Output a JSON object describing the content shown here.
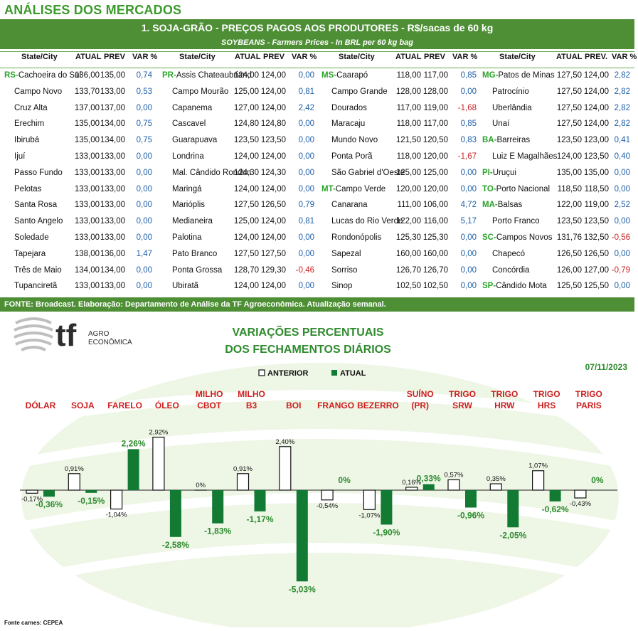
{
  "header": {
    "title": "ANÁLISES DOS MERCADOS"
  },
  "table": {
    "title": "1. SOJA-GRÃO - PREÇOS PAGOS AOS PRODUTORES - R$/sacas de 60 kg",
    "subtitle": "SOYBEANS - Farmers Prices - In BRL per 60 kg bag",
    "groups": [
      {
        "headers": [
          "State/City",
          "ATUAL",
          "PREV",
          "VAR %"
        ],
        "rows": [
          {
            "state": "RS",
            "city": "Cachoeira do Sul",
            "atual": "136,00",
            "prev": "135,00",
            "var": "0,74"
          },
          {
            "state": "",
            "city": "Campo Novo",
            "atual": "133,70",
            "prev": "133,00",
            "var": "0,53"
          },
          {
            "state": "",
            "city": "Cruz Alta",
            "atual": "137,00",
            "prev": "137,00",
            "var": "0,00"
          },
          {
            "state": "",
            "city": "Erechim",
            "atual": "135,00",
            "prev": "134,00",
            "var": "0,75"
          },
          {
            "state": "",
            "city": "Ibirubá",
            "atual": "135,00",
            "prev": "134,00",
            "var": "0,75"
          },
          {
            "state": "",
            "city": "Ijuí",
            "atual": "133,00",
            "prev": "133,00",
            "var": "0,00"
          },
          {
            "state": "",
            "city": "Passo Fundo",
            "atual": "133,00",
            "prev": "133,00",
            "var": "0,00"
          },
          {
            "state": "",
            "city": "Pelotas",
            "atual": "133,00",
            "prev": "133,00",
            "var": "0,00"
          },
          {
            "state": "",
            "city": "Santa Rosa",
            "atual": "133,00",
            "prev": "133,00",
            "var": "0,00"
          },
          {
            "state": "",
            "city": "Santo Angelo",
            "atual": "133,00",
            "prev": "133,00",
            "var": "0,00"
          },
          {
            "state": "",
            "city": "Soledade",
            "atual": "133,00",
            "prev": "133,00",
            "var": "0,00"
          },
          {
            "state": "",
            "city": "Tapejara",
            "atual": "138,00",
            "prev": "136,00",
            "var": "1,47"
          },
          {
            "state": "",
            "city": "Três de Maio",
            "atual": "134,00",
            "prev": "134,00",
            "var": "0,00"
          },
          {
            "state": "",
            "city": "Tupanciretã",
            "atual": "133,00",
            "prev": "133,00",
            "var": "0,00"
          }
        ]
      },
      {
        "headers": [
          "State/City",
          "ATUAL",
          "PREV",
          "VAR %"
        ],
        "rows": [
          {
            "state": "PR",
            "city": "Assis Chateaubriand",
            "atual": "124,00",
            "prev": "124,00",
            "var": "0,00"
          },
          {
            "state": "",
            "city": "Campo Mourão",
            "atual": "125,00",
            "prev": "124,00",
            "var": "0,81"
          },
          {
            "state": "",
            "city": "Capanema",
            "atual": "127,00",
            "prev": "124,00",
            "var": "2,42"
          },
          {
            "state": "",
            "city": "Cascavel",
            "atual": "124,80",
            "prev": "124,80",
            "var": "0,00"
          },
          {
            "state": "",
            "city": "Guarapuava",
            "atual": "123,50",
            "prev": "123,50",
            "var": "0,00"
          },
          {
            "state": "",
            "city": "Londrina",
            "atual": "124,00",
            "prev": "124,00",
            "var": "0,00"
          },
          {
            "state": "",
            "city": "Mal. Cândido Rondon",
            "atual": "124,30",
            "prev": "124,30",
            "var": "0,00"
          },
          {
            "state": "",
            "city": "Maringá",
            "atual": "124,00",
            "prev": "124,00",
            "var": "0,00"
          },
          {
            "state": "",
            "city": "Marióplis",
            "atual": "127,50",
            "prev": "126,50",
            "var": "0,79"
          },
          {
            "state": "",
            "city": "Medianeira",
            "atual": "125,00",
            "prev": "124,00",
            "var": "0,81"
          },
          {
            "state": "",
            "city": "Palotina",
            "atual": "124,00",
            "prev": "124,00",
            "var": "0,00"
          },
          {
            "state": "",
            "city": "Pato Branco",
            "atual": "127,50",
            "prev": "127,50",
            "var": "0,00"
          },
          {
            "state": "",
            "city": "Ponta Grossa",
            "atual": "128,70",
            "prev": "129,30",
            "var": "-0,46"
          },
          {
            "state": "",
            "city": "Ubiratã",
            "atual": "124,00",
            "prev": "124,00",
            "var": "0,00"
          }
        ]
      },
      {
        "headers": [
          "State/City",
          "ATUAL",
          "PREV",
          "VAR %"
        ],
        "rows": [
          {
            "state": "MS",
            "city": "Caarapó",
            "atual": "118,00",
            "prev": "117,00",
            "var": "0,85"
          },
          {
            "state": "",
            "city": "Campo Grande",
            "atual": "128,00",
            "prev": "128,00",
            "var": "0,00"
          },
          {
            "state": "",
            "city": "Dourados",
            "atual": "117,00",
            "prev": "119,00",
            "var": "-1,68"
          },
          {
            "state": "",
            "city": "Maracaju",
            "atual": "118,00",
            "prev": "117,00",
            "var": "0,85"
          },
          {
            "state": "",
            "city": "Mundo Novo",
            "atual": "121,50",
            "prev": "120,50",
            "var": "0,83"
          },
          {
            "state": "",
            "city": "Ponta Porã",
            "atual": "118,00",
            "prev": "120,00",
            "var": "-1,67"
          },
          {
            "state": "",
            "city": "São Gabriel d'Oeste",
            "atual": "125,00",
            "prev": "125,00",
            "var": "0,00"
          },
          {
            "state": "MT",
            "city": "Campo Verde",
            "atual": "120,00",
            "prev": "120,00",
            "var": "0,00"
          },
          {
            "state": "",
            "city": "Canarana",
            "atual": "111,00",
            "prev": "106,00",
            "var": "4,72"
          },
          {
            "state": "",
            "city": "Lucas do Rio Verde",
            "atual": "122,00",
            "prev": "116,00",
            "var": "5,17"
          },
          {
            "state": "",
            "city": "Rondonópolis",
            "atual": "125,30",
            "prev": "125,30",
            "var": "0,00"
          },
          {
            "state": "",
            "city": "Sapezal",
            "atual": "160,00",
            "prev": "160,00",
            "var": "0,00"
          },
          {
            "state": "",
            "city": "Sorriso",
            "atual": "126,70",
            "prev": "126,70",
            "var": "0,00"
          },
          {
            "state": "",
            "city": "Sinop",
            "atual": "102,50",
            "prev": "102,50",
            "var": "0,00"
          }
        ]
      },
      {
        "headers": [
          "State/City",
          "ATUAL",
          "PREV.",
          "VAR %"
        ],
        "rows": [
          {
            "state": "MG",
            "city": "Patos de Minas",
            "atual": "127,50",
            "prev": "124,00",
            "var": "2,82"
          },
          {
            "state": "",
            "city": "Patrocínio",
            "atual": "127,50",
            "prev": "124,00",
            "var": "2,82"
          },
          {
            "state": "",
            "city": "Uberlândia",
            "atual": "127,50",
            "prev": "124,00",
            "var": "2,82"
          },
          {
            "state": "",
            "city": "Unaí",
            "atual": "127,50",
            "prev": "124,00",
            "var": "2,82"
          },
          {
            "state": "BA",
            "city": "Barreiras",
            "atual": "123,50",
            "prev": "123,00",
            "var": "0,41"
          },
          {
            "state": "",
            "city": "Luiz E Magalhães",
            "atual": "124,00",
            "prev": "123,50",
            "var": "0,40"
          },
          {
            "state": "PI",
            "city": "Uruçui",
            "atual": "135,00",
            "prev": "135,00",
            "var": "0,00"
          },
          {
            "state": "TO",
            "city": "Porto Nacional",
            "atual": "118,50",
            "prev": "118,50",
            "var": "0,00"
          },
          {
            "state": "MA",
            "city": "Balsas",
            "atual": "122,00",
            "prev": "119,00",
            "var": "2,52"
          },
          {
            "state": "",
            "city": "Porto Franco",
            "atual": "123,50",
            "prev": "123,50",
            "var": "0,00"
          },
          {
            "state": "SC",
            "city": "Campos Novos",
            "atual": "131,76",
            "prev": "132,50",
            "var": "-0,56"
          },
          {
            "state": "",
            "city": "Chapecó",
            "atual": "126,50",
            "prev": "126,50",
            "var": "0,00"
          },
          {
            "state": "",
            "city": "Concórdia",
            "atual": "126,00",
            "prev": "127,00",
            "var": "-0,79"
          },
          {
            "state": "SP",
            "city": "Cândido Mota",
            "atual": "125,50",
            "prev": "125,50",
            "var": "0,00"
          }
        ]
      }
    ],
    "footer": "FONTE: Broadcast. Elaboração: Departamento de Análise da TF Agroeconômica. Atualização semanal."
  },
  "logo": {
    "tf": "tf",
    "line1": "AGRO",
    "line2": "ECONÔMICA"
  },
  "colors": {
    "green_dark": "#4e8f36",
    "bar_green": "#137a33",
    "label_red": "#cc1f1f",
    "title_green": "#3a9a2a",
    "pos_blue": "#1f5fa8"
  },
  "chart_data": {
    "type": "bar",
    "title_line1": "VARIAÇÕES PERCENTUAIS",
    "title_line2": "DOS FECHAMENTOS DIÁRIOS",
    "date": "07/11/2023",
    "source": "Fonte carnes: CEPEA",
    "legend": {
      "position": "top-center",
      "items": [
        "ANTERIOR",
        "ATUAL"
      ]
    },
    "categories": [
      [
        "DÓLAR"
      ],
      [
        "SOJA"
      ],
      [
        "FARELO"
      ],
      [
        "ÓLEO"
      ],
      [
        "MILHO",
        "CBOT"
      ],
      [
        "MILHO",
        "B3"
      ],
      [
        "BOI"
      ],
      [
        "FRANGO"
      ],
      [
        "BEZERRO"
      ],
      [
        "SUÍNO",
        "(PR)"
      ],
      [
        "TRIGO",
        "SRW"
      ],
      [
        "TRIGO",
        "HRW"
      ],
      [
        "TRIGO",
        "HRS"
      ],
      [
        "TRIGO",
        "PARIS"
      ]
    ],
    "series": [
      {
        "name": "ANTERIOR",
        "values": [
          -0.17,
          0.91,
          -1.04,
          2.92,
          0,
          0.91,
          2.4,
          -0.54,
          -1.07,
          0.16,
          0.57,
          0.35,
          1.07,
          -0.43
        ],
        "labels": [
          "-0,17%",
          "0,91%",
          "-1,04%",
          "2,92%",
          "0%",
          "0,91%",
          "2,40%",
          "-0,54%",
          "-1,07%",
          "0,16%",
          "0,57%",
          "0,35%",
          "1,07%",
          "-0,43%"
        ]
      },
      {
        "name": "ATUAL",
        "values": [
          -0.36,
          -0.15,
          2.26,
          -2.58,
          -1.83,
          -1.17,
          -5.03,
          0,
          -1.9,
          0.33,
          -0.96,
          -2.05,
          -0.62,
          0
        ],
        "labels": [
          "-0,36%",
          "-0,15%",
          "2,26%",
          "-2,58%",
          "-1,83%",
          "-1,17%",
          "-5,03%",
          "0%",
          "-1,90%",
          "0,33%",
          "-0,96%",
          "-2,05%",
          "-0,62%",
          "0%"
        ]
      }
    ]
  }
}
